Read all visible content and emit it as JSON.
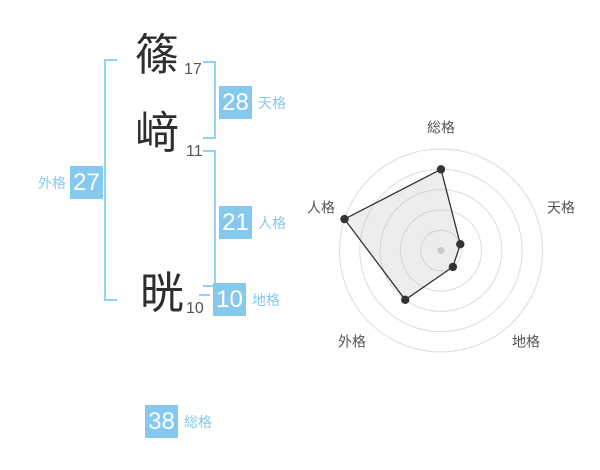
{
  "name": {
    "characters": [
      {
        "char": "篠",
        "strokes": "17"
      },
      {
        "char": "﨑",
        "strokes": "11"
      },
      {
        "char": "晄",
        "strokes": "10"
      }
    ]
  },
  "kaku": {
    "tenkaku": {
      "label": "天格",
      "value": "28"
    },
    "jinkaku": {
      "label": "人格",
      "value": "21"
    },
    "chikaku": {
      "label": "地格",
      "value": "10"
    },
    "gaikaku": {
      "label": "外格",
      "value": "27"
    },
    "soukaku": {
      "label": "総格",
      "value": "38"
    }
  },
  "colors": {
    "badge_blue": "#85c9ee",
    "bracket_blue": "#8fd2f4",
    "ring_gray": "#dcdcdc",
    "polygon_stroke": "#333333",
    "polygon_fill": "rgba(190,190,190,0.28)",
    "center_dot": "#c9c9c9",
    "axis_label_gray": "#555555"
  },
  "chart_data": {
    "type": "radar",
    "axes": [
      "総格",
      "天格",
      "地格",
      "外格",
      "人格"
    ],
    "axis_values": [
      38,
      28,
      10,
      27,
      21
    ],
    "scores": [
      4,
      1,
      1,
      3,
      5
    ],
    "max_score": 5,
    "rings": 5,
    "grid": "concentric-circles",
    "legend": "none"
  }
}
